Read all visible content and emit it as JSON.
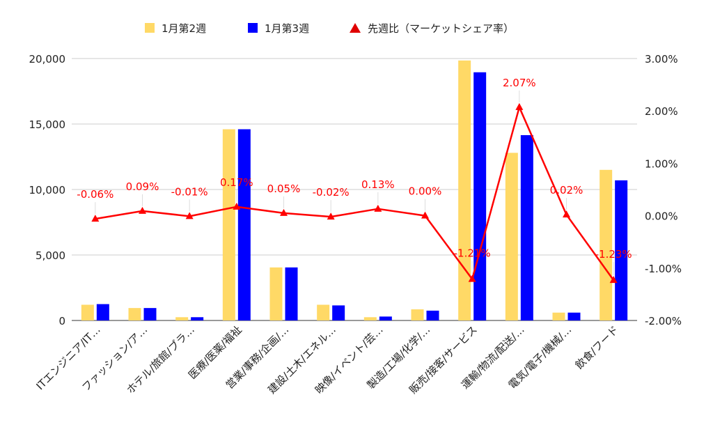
{
  "chart_data": {
    "type": "bar",
    "legend_position": "top",
    "categories": [
      "ITエンジニア/IT…",
      "ファッション/ア…",
      "ホテル/旅館/ブラ…",
      "医療/医薬/福祉",
      "営業/事務/企画/…",
      "建設/土木/エネル…",
      "映像/イベント/芸…",
      "製造/工場/化学/…",
      "販売/接客/サービス",
      "運輸/物流/配送/…",
      "電気/電子/機械/…",
      "飲食/フード"
    ],
    "series": [
      {
        "name": "1月第2週",
        "type": "bar",
        "axis": "left",
        "color": "#FFD966",
        "values": [
          1200,
          950,
          250,
          14600,
          4050,
          1200,
          250,
          850,
          19850,
          12800,
          600,
          11500
        ]
      },
      {
        "name": "1月第3週",
        "type": "bar",
        "axis": "left",
        "color": "#0000FF",
        "values": [
          1250,
          950,
          250,
          14600,
          4050,
          1150,
          300,
          750,
          18950,
          14150,
          600,
          10700
        ]
      },
      {
        "name": "先週比（マーケットシェア率）",
        "type": "line",
        "axis": "right",
        "color": "#FF0000",
        "marker": "triangle",
        "values": [
          -0.06,
          0.09,
          -0.01,
          0.17,
          0.05,
          -0.02,
          0.13,
          0.0,
          -1.21,
          2.07,
          0.02,
          -1.23
        ],
        "data_labels": [
          "-0.06%",
          "0.09%",
          "-0.01%",
          "0.17%",
          "0.05%",
          "-0.02%",
          "0.13%",
          "0.00%",
          "-1.21%",
          "2.07%",
          "0.02%",
          "-1.23%"
        ]
      }
    ],
    "y_left": {
      "ylim": [
        0,
        20000
      ],
      "ticks": [
        0,
        5000,
        10000,
        15000,
        20000
      ],
      "tick_labels": [
        "0",
        "5,000",
        "10,000",
        "15,000",
        "20,000"
      ]
    },
    "y_right": {
      "ylim": [
        -2.0,
        3.0
      ],
      "ticks": [
        -2,
        -1,
        0,
        1,
        2,
        3
      ],
      "tick_labels": [
        "-2.00%",
        "-1.00%",
        "0.00%",
        "1.00%",
        "2.00%",
        "3.00%"
      ]
    },
    "grid": true
  }
}
